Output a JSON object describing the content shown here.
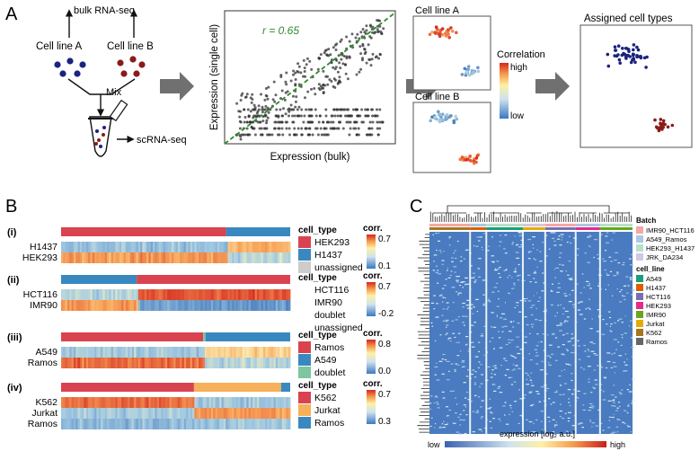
{
  "panel_labels": [
    "A",
    "B",
    "C"
  ],
  "panelA": {
    "bulk": "bulk RNA-seq",
    "cellA": "Cell line A",
    "cellB": "Cell line B",
    "mix": "Mix",
    "sc": "scRNA-seq",
    "scatter_xlabel": "Expression (bulk)",
    "scatter_ylabel": "Expression (single cell)",
    "r_label": "r = 0.65",
    "tsneA": "Cell line A",
    "tsneB": "Cell line B",
    "corr_title": "Correlation",
    "corr_high": "high",
    "corr_low": "low",
    "assigned": "Assigned cell types",
    "colors": {
      "lineA": "#1a237e",
      "lineB": "#8b1a1a",
      "fit": "#2e8b2e"
    }
  },
  "panelB": {
    "rows": [
      {
        "tag": "(i)",
        "legend_title": "cell_type",
        "corr_title": "corr.",
        "corr_max": "0.7",
        "corr_min": "0.1",
        "genes": [
          "H1437",
          "HEK293"
        ],
        "types": [
          {
            "name": "HEK293",
            "color": "#d9434f"
          },
          {
            "name": "H1437",
            "color": "#3a88c0"
          },
          {
            "name": "unassigned",
            "color": "#cccccc"
          }
        ]
      },
      {
        "tag": "(ii)",
        "legend_title": "cell_type",
        "corr_title": "corr.",
        "corr_max": "0.7",
        "corr_min": "-0.2",
        "genes": [
          "HCT116",
          "IMR90"
        ],
        "types": [
          {
            "name": "HCT116",
            "color": ""
          },
          {
            "name": "IMR90",
            "color": ""
          },
          {
            "name": "doublet",
            "color": ""
          },
          {
            "name": "unassigned",
            "color": ""
          }
        ]
      },
      {
        "tag": "(iii)",
        "legend_title": "cell_type",
        "corr_title": "corr.",
        "corr_max": "0.8",
        "corr_min": "0.0",
        "genes": [
          "A549",
          "Ramos"
        ],
        "types": [
          {
            "name": "Ramos",
            "color": "#d9434f"
          },
          {
            "name": "A549",
            "color": "#3a88c0"
          },
          {
            "name": "doublet",
            "color": "#7cc6a0"
          }
        ]
      },
      {
        "tag": "(iv)",
        "legend_title": "cell_type",
        "corr_title": "corr.",
        "corr_max": "0.7",
        "corr_min": "0.3",
        "genes": [
          "K562",
          "Jurkat",
          "Ramos"
        ],
        "types": [
          {
            "name": "K562",
            "color": "#d9434f"
          },
          {
            "name": "Jurkat",
            "color": "#f6b15a"
          },
          {
            "name": "Ramos",
            "color": "#3a88c0"
          }
        ]
      }
    ]
  },
  "panelC": {
    "batch_title": "Batch",
    "batches": [
      {
        "name": "IMR90_HCT116",
        "color": "#f4a7a3"
      },
      {
        "name": "A549_Ramos",
        "color": "#a9c9e6"
      },
      {
        "name": "HEK293_H1437",
        "color": "#b8e0c8"
      },
      {
        "name": "JRK_DA234",
        "color": "#d6c5e3"
      }
    ],
    "cell_line_title": "cell_line",
    "cell_lines": [
      {
        "name": "A549",
        "color": "#1b9e77"
      },
      {
        "name": "H1437",
        "color": "#d95f02"
      },
      {
        "name": "HCT116",
        "color": "#7570b3"
      },
      {
        "name": "HEK293",
        "color": "#e7298a"
      },
      {
        "name": "IMR90",
        "color": "#66a61e"
      },
      {
        "name": "Jurkat",
        "color": "#e6ab02"
      },
      {
        "name": "K562",
        "color": "#a6761d"
      },
      {
        "name": "Ramos",
        "color": "#666666"
      }
    ],
    "expression_label": "expression [log₂ a.u.]",
    "low": "low",
    "high": "high"
  }
}
